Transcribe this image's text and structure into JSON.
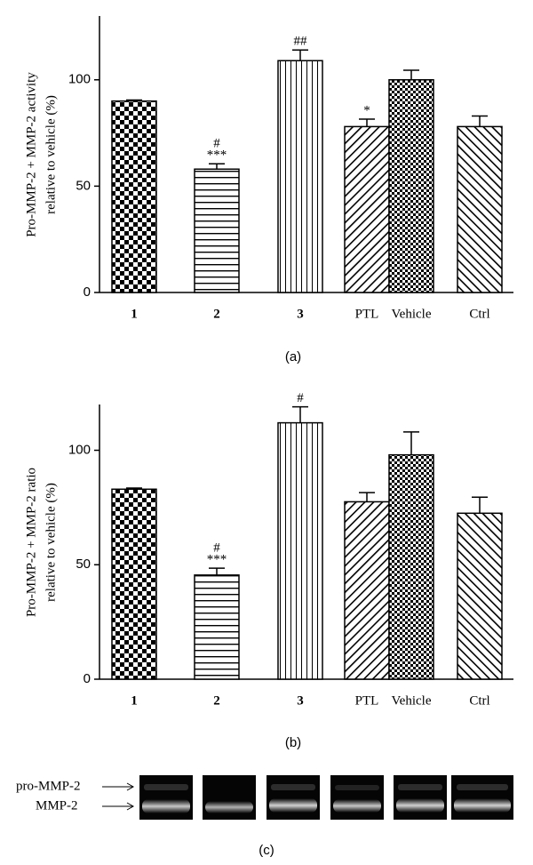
{
  "chart_data": [
    {
      "type": "bar",
      "caption": "(a)",
      "ylabel": [
        "Pro-MMP-2 + MMP-2 activity",
        "relative to vehicle (%)"
      ],
      "categories": [
        "1",
        "2",
        "3",
        "PTL",
        "Vehicle",
        "Ctrl"
      ],
      "values": [
        90,
        58,
        109,
        78,
        100,
        78
      ],
      "errors": [
        0.5,
        2.5,
        5,
        3.5,
        4.5,
        5
      ],
      "annotations": [
        null,
        [
          "#",
          "***"
        ],
        [
          "##"
        ],
        [
          "*"
        ],
        null,
        null
      ],
      "patterns": [
        "checker",
        "hlines",
        "vlines",
        "diag-up",
        "dots",
        "diag-down"
      ],
      "color": "#000000",
      "ylim": [
        0,
        130
      ],
      "yticks": [
        0,
        50,
        100
      ]
    },
    {
      "type": "bar",
      "caption": "(b)",
      "ylabel": [
        "Pro-MMP-2 + MMP-2 ratio",
        "relative to vehicle (%)"
      ],
      "categories": [
        "1",
        "2",
        "3",
        "PTL",
        "Vehicle",
        "Ctrl"
      ],
      "values": [
        83,
        45.5,
        112,
        77.5,
        98,
        72.5
      ],
      "errors": [
        0.5,
        3,
        7,
        4,
        10,
        7
      ],
      "annotations": [
        null,
        [
          "#",
          "***"
        ],
        [
          "#"
        ],
        null,
        null,
        null
      ],
      "patterns": [
        "checker",
        "hlines",
        "vlines",
        "diag-up",
        "dots",
        "diag-down"
      ],
      "color": "#000000",
      "ylim": [
        0,
        120
      ],
      "yticks": [
        0,
        50,
        100
      ]
    }
  ],
  "gel": {
    "labels": [
      "pro-MMP-2",
      "MMP-2"
    ],
    "caption": "(c)"
  }
}
